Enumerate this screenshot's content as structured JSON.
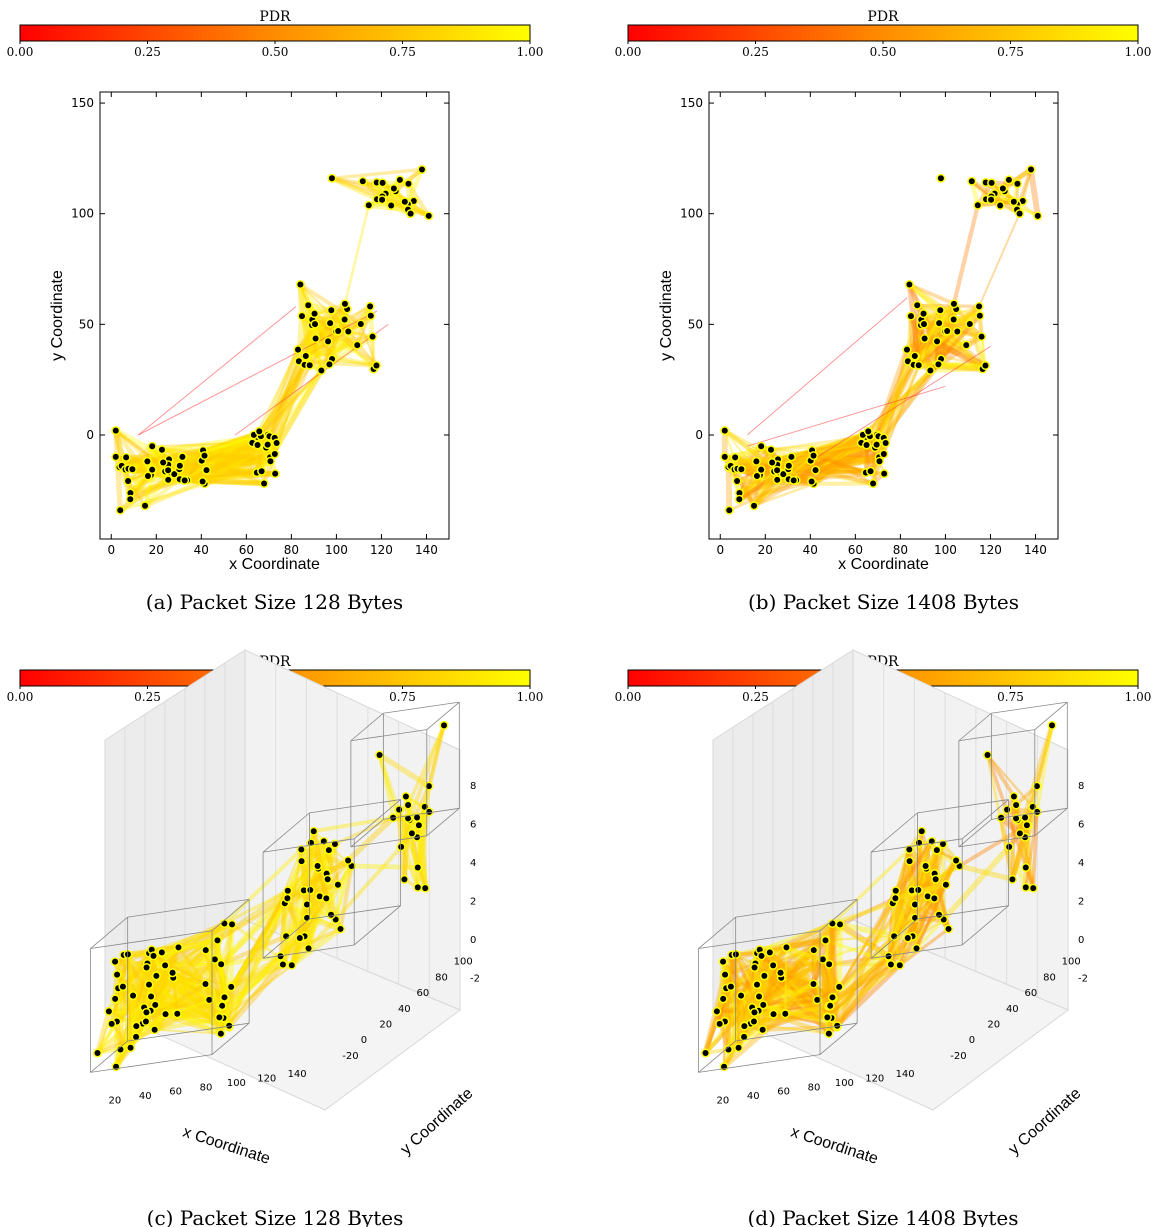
{
  "colors": {
    "cmap_low": "#ff0000",
    "cmap_mid": "#ff8c00",
    "cmap_high": "#ffff00",
    "node": "#000000",
    "node_ring": "#ffff00"
  },
  "colorbar": {
    "label": "PDR",
    "ticks": [
      "0.00",
      "0.25",
      "0.50",
      "0.75",
      "1.00"
    ]
  },
  "chart_data": [
    {
      "type": "scatter",
      "panel": "a",
      "caption": "(a) Packet Size 128 Bytes",
      "xlabel": "x Coordinate",
      "ylabel": "y Coordinate",
      "xlim": [
        -5,
        150
      ],
      "ylim": [
        -47,
        155
      ],
      "xticks": [
        0,
        20,
        40,
        60,
        80,
        100,
        120,
        140
      ],
      "yticks": [
        0,
        50,
        100,
        150
      ],
      "edge_style": "dense",
      "weak_links": [
        [
          [
            12,
            0
          ],
          [
            82,
            58
          ]
        ],
        [
          [
            12,
            0
          ],
          [
            118,
            56
          ]
        ],
        [
          [
            55,
            0
          ],
          [
            123,
            50
          ]
        ]
      ]
    },
    {
      "type": "scatter",
      "panel": "b",
      "caption": "(b) Packet Size 1408 Bytes",
      "xlabel": "x Coordinate",
      "ylabel": "y Coordinate",
      "xlim": [
        -5,
        150
      ],
      "ylim": [
        -47,
        155
      ],
      "xticks": [
        0,
        20,
        40,
        60,
        80,
        100,
        120,
        140
      ],
      "yticks": [
        0,
        50,
        100,
        150
      ],
      "edge_style": "mixed",
      "weak_links": [
        [
          [
            12,
            0
          ],
          [
            83,
            62
          ]
        ],
        [
          [
            12,
            -5
          ],
          [
            100,
            22
          ]
        ],
        [
          [
            40,
            -12
          ],
          [
            120,
            40
          ]
        ]
      ]
    },
    {
      "type": "scatter",
      "panel": "c",
      "projection": "3d",
      "caption": "(c) Packet Size 128 Bytes",
      "xlabel": "x Coordinate",
      "ylabel": "y Coordinate",
      "xticks": [
        20,
        40,
        60,
        80,
        100,
        120,
        140
      ],
      "yticks": [
        -20,
        0,
        20,
        40,
        60,
        80,
        100
      ],
      "zticks": [
        -2,
        0,
        2,
        4,
        6,
        8
      ],
      "edge_style": "dense"
    },
    {
      "type": "scatter",
      "panel": "d",
      "projection": "3d",
      "caption": "(d) Packet Size 1408 Bytes",
      "xlabel": "x Coordinate",
      "ylabel": "y Coordinate",
      "xticks": [
        20,
        40,
        60,
        80,
        100,
        120,
        140
      ],
      "yticks": [
        -20,
        0,
        20,
        40,
        60,
        80,
        100
      ],
      "zticks": [
        -2,
        0,
        2,
        4,
        6,
        8
      ],
      "edge_style": "mixed"
    }
  ]
}
